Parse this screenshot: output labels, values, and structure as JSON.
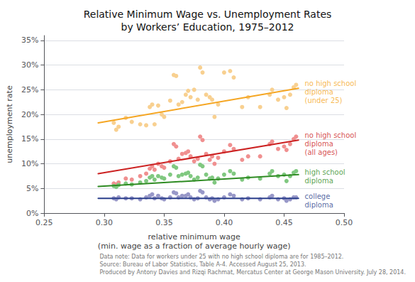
{
  "chart_data": {
    "type": "scatter",
    "title": "Relative Minimum Wage vs. Unemployment Rates\nby Workers’ Education, 1975–2012",
    "xlabel": "relative minimum wage\n(min. wage as a fraction of average hourly wage)",
    "ylabel": "unemployment rate",
    "footnote": "Data note: Data for workers under 25 with no high school diploma are for 1985–2012.\nSource: Bureau of Labor Statistics, Table A-4. Accessed August 25, 2013.\nProduced by Antony Davies and Rizqi Rachmat, Mercatus Center at George Mason University. July 28, 2014.",
    "xlim": [
      0.25,
      0.5
    ],
    "ylim": [
      0.0,
      0.36
    ],
    "xticks": [
      0.25,
      {
        "value": 0.3,
        "label": "0.30"
      },
      0.35,
      {
        "value": 0.4,
        "label": "0.40"
      },
      0.45,
      {
        "value": 0.5,
        "label": "0.50"
      }
    ],
    "yticks": [
      {
        "value": 0.0,
        "label": "0%"
      },
      {
        "value": 0.05,
        "label": "5%"
      },
      {
        "value": 0.1,
        "label": "10%"
      },
      {
        "value": 0.15,
        "label": "15%"
      },
      {
        "value": 0.2,
        "label": "20%"
      },
      {
        "value": 0.25,
        "label": "25%"
      },
      {
        "value": 0.3,
        "label": "30%"
      },
      {
        "value": 0.35,
        "label": "35%"
      }
    ],
    "grid": true,
    "series": [
      {
        "type": "scatter",
        "color": "#F8D090",
        "x": [
          0.308,
          0.31,
          0.312,
          0.318,
          0.323,
          0.33,
          0.335,
          0.338,
          0.34,
          0.342,
          0.345,
          0.348,
          0.35,
          0.355,
          0.358,
          0.36,
          0.362,
          0.365,
          0.368,
          0.37,
          0.372,
          0.375,
          0.378,
          0.38,
          0.382,
          0.385,
          0.388,
          0.39,
          0.392,
          0.395,
          0.4,
          0.405,
          0.408,
          0.415,
          0.42,
          0.43,
          0.438,
          0.44,
          0.445,
          0.45,
          0.452,
          0.455,
          0.458,
          0.46
        ],
        "values": [
          0.183,
          0.169,
          0.175,
          0.193,
          0.185,
          0.18,
          0.178,
          0.215,
          0.22,
          0.18,
          0.218,
          0.2,
          0.195,
          0.228,
          0.28,
          0.278,
          0.22,
          0.225,
          0.24,
          0.248,
          0.235,
          0.25,
          0.23,
          0.295,
          0.285,
          0.24,
          0.235,
          0.23,
          0.195,
          0.22,
          0.285,
          0.288,
          0.275,
          0.215,
          0.235,
          0.215,
          0.24,
          0.25,
          0.23,
          0.235,
          0.213,
          0.24,
          0.255,
          0.26
        ]
      },
      {
        "type": "line",
        "color": "#F5A623",
        "x": [
          0.295,
          0.462
        ],
        "values": [
          0.183,
          0.253
        ]
      },
      {
        "type": "scatter",
        "color": "#F09090",
        "x": [
          0.308,
          0.31,
          0.312,
          0.318,
          0.323,
          0.33,
          0.335,
          0.338,
          0.34,
          0.342,
          0.345,
          0.348,
          0.35,
          0.355,
          0.358,
          0.36,
          0.362,
          0.365,
          0.368,
          0.37,
          0.372,
          0.375,
          0.378,
          0.38,
          0.382,
          0.385,
          0.388,
          0.39,
          0.392,
          0.395,
          0.4,
          0.405,
          0.408,
          0.415,
          0.42,
          0.43,
          0.438,
          0.44,
          0.445,
          0.45,
          0.452,
          0.455,
          0.458,
          0.46
        ],
        "values": [
          0.06,
          0.058,
          0.062,
          0.07,
          0.068,
          0.075,
          0.08,
          0.09,
          0.095,
          0.088,
          0.1,
          0.095,
          0.092,
          0.105,
          0.14,
          0.135,
          0.11,
          0.12,
          0.122,
          0.125,
          0.115,
          0.105,
          0.11,
          0.155,
          0.148,
          0.12,
          0.108,
          0.115,
          0.1,
          0.112,
          0.125,
          0.138,
          0.13,
          0.108,
          0.115,
          0.115,
          0.14,
          0.145,
          0.13,
          0.135,
          0.128,
          0.14,
          0.15,
          0.155
        ]
      },
      {
        "type": "line",
        "color": "#CC2222",
        "x": [
          0.295,
          0.462
        ],
        "values": [
          0.08,
          0.148
        ]
      },
      {
        "type": "scatter",
        "color": "#80C880",
        "x": [
          0.308,
          0.31,
          0.312,
          0.318,
          0.323,
          0.33,
          0.335,
          0.338,
          0.34,
          0.342,
          0.345,
          0.348,
          0.35,
          0.355,
          0.358,
          0.36,
          0.362,
          0.365,
          0.368,
          0.37,
          0.372,
          0.375,
          0.378,
          0.38,
          0.382,
          0.385,
          0.388,
          0.39,
          0.392,
          0.395,
          0.4,
          0.405,
          0.408,
          0.415,
          0.42,
          0.43,
          0.438,
          0.44,
          0.445,
          0.45,
          0.452,
          0.455,
          0.458,
          0.46
        ],
        "values": [
          0.055,
          0.053,
          0.057,
          0.06,
          0.058,
          0.062,
          0.065,
          0.072,
          0.075,
          0.068,
          0.075,
          0.072,
          0.07,
          0.078,
          0.095,
          0.092,
          0.075,
          0.078,
          0.08,
          0.082,
          0.075,
          0.068,
          0.072,
          0.098,
          0.095,
          0.078,
          0.07,
          0.072,
          0.062,
          0.07,
          0.078,
          0.085,
          0.08,
          0.068,
          0.072,
          0.07,
          0.08,
          0.085,
          0.075,
          0.078,
          0.065,
          0.075,
          0.082,
          0.085
        ]
      },
      {
        "type": "line",
        "color": "#2E8B22",
        "x": [
          0.295,
          0.462
        ],
        "values": [
          0.054,
          0.078
        ]
      },
      {
        "type": "scatter",
        "color": "#9898C8",
        "x": [
          0.308,
          0.31,
          0.312,
          0.318,
          0.323,
          0.33,
          0.335,
          0.338,
          0.34,
          0.342,
          0.345,
          0.348,
          0.35,
          0.355,
          0.358,
          0.36,
          0.362,
          0.365,
          0.368,
          0.37,
          0.372,
          0.375,
          0.378,
          0.38,
          0.382,
          0.385,
          0.388,
          0.39,
          0.392,
          0.395,
          0.4,
          0.405,
          0.408,
          0.415,
          0.42,
          0.43,
          0.438,
          0.44,
          0.445,
          0.45,
          0.452,
          0.455,
          0.458,
          0.46
        ],
        "values": [
          0.03,
          0.028,
          0.032,
          0.03,
          0.03,
          0.028,
          0.032,
          0.035,
          0.038,
          0.03,
          0.035,
          0.03,
          0.028,
          0.032,
          0.042,
          0.04,
          0.032,
          0.035,
          0.035,
          0.038,
          0.032,
          0.028,
          0.03,
          0.045,
          0.042,
          0.032,
          0.028,
          0.03,
          0.025,
          0.028,
          0.032,
          0.038,
          0.035,
          0.028,
          0.03,
          0.028,
          0.032,
          0.035,
          0.028,
          0.03,
          0.025,
          0.028,
          0.032,
          0.032
        ]
      },
      {
        "type": "line",
        "color": "#2B3F8C",
        "x": [
          0.295,
          0.462
        ],
        "values": [
          0.03,
          0.03
        ]
      }
    ],
    "annotations": [
      {
        "text": "no high school\ndiploma\n(under 25)",
        "x": 0.466,
        "y": 0.245,
        "color": "#F5A623"
      },
      {
        "text": "no high school\ndiploma\n(all ages)",
        "x": 0.466,
        "y": 0.14,
        "color": "#CC2222"
      },
      {
        "text": "high school\ndiploma",
        "x": 0.466,
        "y": 0.074,
        "color": "#2E8B22"
      },
      {
        "text": "college\ndiploma",
        "x": 0.466,
        "y": 0.025,
        "color": "#2B3F8C"
      }
    ]
  }
}
